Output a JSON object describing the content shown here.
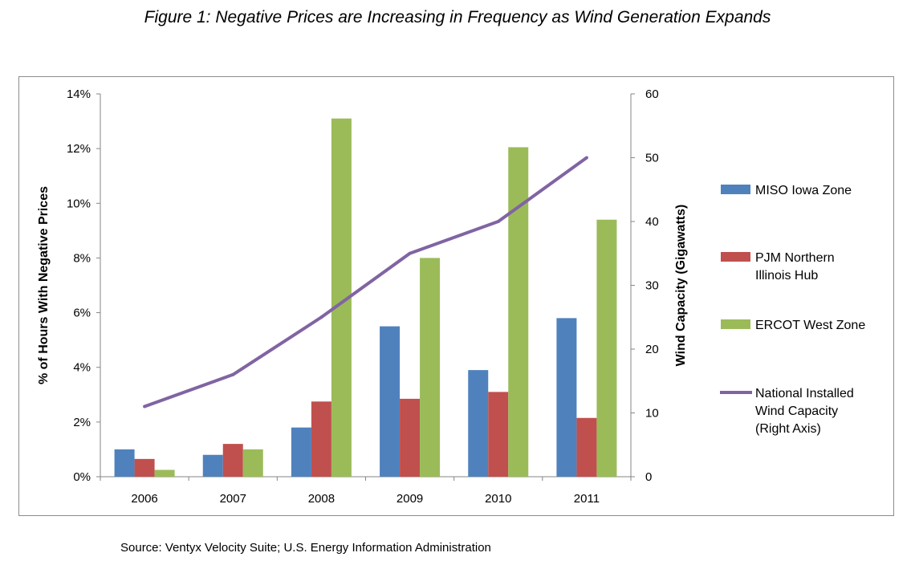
{
  "title": "Figure 1: Negative Prices are Increasing in Frequency as Wind Generation Expands",
  "source": "Source: Ventyx Velocity Suite; U.S. Energy Information Administration",
  "chart_data": {
    "type": "bar",
    "categories": [
      "2006",
      "2007",
      "2008",
      "2009",
      "2010",
      "2011"
    ],
    "series": [
      {
        "name": "MISO Iowa Zone",
        "type": "bar",
        "axis": "left",
        "color": "#4f81bd",
        "values": [
          1.0,
          0.8,
          1.8,
          5.5,
          3.9,
          5.8
        ]
      },
      {
        "name": "PJM Northern Illinois Hub",
        "type": "bar",
        "axis": "left",
        "color": "#c0504d",
        "values": [
          0.65,
          1.2,
          2.75,
          2.85,
          3.1,
          2.15
        ]
      },
      {
        "name": "ERCOT West Zone",
        "type": "bar",
        "axis": "left",
        "color": "#9bbb59",
        "values": [
          0.25,
          1.0,
          13.1,
          8.0,
          12.05,
          9.4
        ]
      },
      {
        "name": "National Installed Wind Capacity (Right Axis)",
        "type": "line",
        "axis": "right",
        "color": "#8064a2",
        "values": [
          11,
          16,
          25,
          35,
          40,
          50
        ]
      }
    ],
    "legend_lines": [
      [
        "MISO Iowa Zone"
      ],
      [
        "PJM Northern",
        "Illinois Hub"
      ],
      [
        "ERCOT West Zone"
      ],
      [
        "National Installed",
        "Wind Capacity",
        "(Right Axis)"
      ]
    ],
    "ylabel": "% of Hours With Negative Prices",
    "ylabel_right": "Wind Capacity (Gigawatts)",
    "ylim": [
      0,
      14
    ],
    "ylim_right": [
      0,
      60
    ],
    "yticks": [
      "0%",
      "2%",
      "4%",
      "6%",
      "8%",
      "10%",
      "12%",
      "14%"
    ],
    "yticks_right": [
      "0",
      "10",
      "20",
      "30",
      "40",
      "50",
      "60"
    ],
    "grid": false,
    "legend_position": "right"
  }
}
